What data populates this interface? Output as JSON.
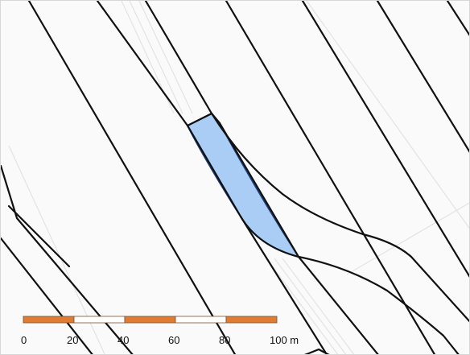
{
  "map": {
    "background_color": "#fafafa",
    "parcel_line_color": "#111111",
    "faint_line_color": "#e3e3e3",
    "highlight": {
      "fill_color": "#a9cdf5",
      "stroke_color": "#1f3f7a"
    },
    "scale_bar": {
      "segment_colors": [
        "#e07b33",
        "#ffffff",
        "#e07b33",
        "#ffffff",
        "#e07b33"
      ],
      "labels": [
        "0",
        "20",
        "40",
        "60",
        "80",
        "100 m"
      ]
    }
  }
}
